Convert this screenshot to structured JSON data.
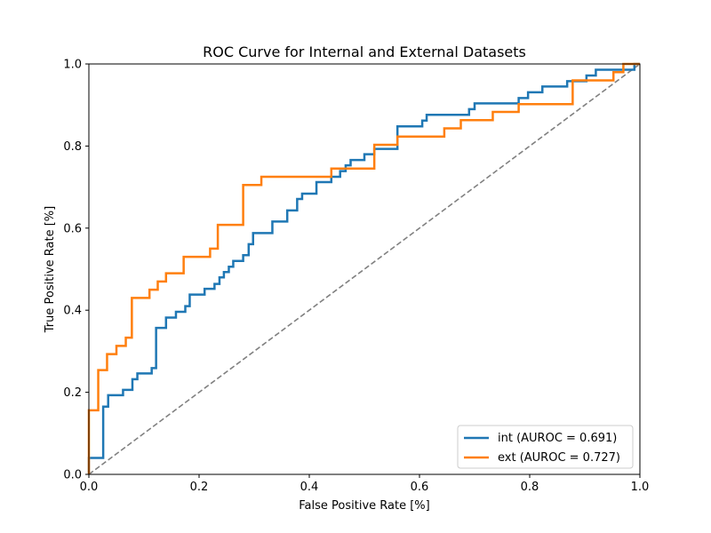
{
  "chart_data": {
    "type": "line",
    "title": "ROC Curve for Internal and External Datasets",
    "xlabel": "False Positive Rate [%]",
    "ylabel": "True Positive Rate [%]",
    "xlim": [
      0,
      1
    ],
    "ylim": [
      0,
      1
    ],
    "xticks": [
      "0.0",
      "0.2",
      "0.4",
      "0.6",
      "0.8",
      "1.0"
    ],
    "yticks": [
      "0.0",
      "0.2",
      "0.4",
      "0.6",
      "0.8",
      "1.0"
    ],
    "grid": false,
    "legend_position": "lower-right",
    "series": [
      {
        "name": "int (AUROC = 0.691)",
        "color": "#1f77b4",
        "points": [
          [
            0,
            0
          ],
          [
            0,
            0.04
          ],
          [
            0.026,
            0.04
          ],
          [
            0.026,
            0.165
          ],
          [
            0.035,
            0.165
          ],
          [
            0.035,
            0.193
          ],
          [
            0.062,
            0.193
          ],
          [
            0.062,
            0.206
          ],
          [
            0.079,
            0.206
          ],
          [
            0.079,
            0.232
          ],
          [
            0.088,
            0.232
          ],
          [
            0.088,
            0.246
          ],
          [
            0.114,
            0.246
          ],
          [
            0.114,
            0.259
          ],
          [
            0.122,
            0.259
          ],
          [
            0.122,
            0.357
          ],
          [
            0.14,
            0.357
          ],
          [
            0.14,
            0.382
          ],
          [
            0.158,
            0.382
          ],
          [
            0.158,
            0.396
          ],
          [
            0.175,
            0.396
          ],
          [
            0.175,
            0.41
          ],
          [
            0.183,
            0.41
          ],
          [
            0.183,
            0.438
          ],
          [
            0.21,
            0.438
          ],
          [
            0.21,
            0.452
          ],
          [
            0.228,
            0.452
          ],
          [
            0.228,
            0.464
          ],
          [
            0.237,
            0.464
          ],
          [
            0.237,
            0.48
          ],
          [
            0.245,
            0.48
          ],
          [
            0.245,
            0.493
          ],
          [
            0.254,
            0.493
          ],
          [
            0.254,
            0.506
          ],
          [
            0.262,
            0.506
          ],
          [
            0.262,
            0.52
          ],
          [
            0.28,
            0.52
          ],
          [
            0.28,
            0.534
          ],
          [
            0.29,
            0.534
          ],
          [
            0.29,
            0.561
          ],
          [
            0.298,
            0.561
          ],
          [
            0.298,
            0.588
          ],
          [
            0.333,
            0.588
          ],
          [
            0.333,
            0.616
          ],
          [
            0.36,
            0.616
          ],
          [
            0.36,
            0.643
          ],
          [
            0.378,
            0.643
          ],
          [
            0.378,
            0.671
          ],
          [
            0.387,
            0.671
          ],
          [
            0.387,
            0.684
          ],
          [
            0.413,
            0.684
          ],
          [
            0.413,
            0.712
          ],
          [
            0.44,
            0.712
          ],
          [
            0.44,
            0.725
          ],
          [
            0.456,
            0.725
          ],
          [
            0.456,
            0.739
          ],
          [
            0.466,
            0.739
          ],
          [
            0.466,
            0.753
          ],
          [
            0.475,
            0.753
          ],
          [
            0.475,
            0.766
          ],
          [
            0.5,
            0.766
          ],
          [
            0.5,
            0.78
          ],
          [
            0.518,
            0.78
          ],
          [
            0.518,
            0.793
          ],
          [
            0.56,
            0.793
          ],
          [
            0.56,
            0.848
          ],
          [
            0.605,
            0.848
          ],
          [
            0.605,
            0.862
          ],
          [
            0.613,
            0.862
          ],
          [
            0.613,
            0.876
          ],
          [
            0.69,
            0.876
          ],
          [
            0.69,
            0.89
          ],
          [
            0.7,
            0.89
          ],
          [
            0.7,
            0.904
          ],
          [
            0.78,
            0.904
          ],
          [
            0.78,
            0.917
          ],
          [
            0.797,
            0.917
          ],
          [
            0.797,
            0.931
          ],
          [
            0.823,
            0.931
          ],
          [
            0.823,
            0.945
          ],
          [
            0.868,
            0.945
          ],
          [
            0.868,
            0.958
          ],
          [
            0.903,
            0.958
          ],
          [
            0.903,
            0.972
          ],
          [
            0.92,
            0.972
          ],
          [
            0.92,
            0.986
          ],
          [
            0.99,
            0.986
          ],
          [
            0.99,
            1.0
          ],
          [
            1.0,
            1.0
          ]
        ]
      },
      {
        "name": "ext (AUROC = 0.727)",
        "color": "#ff7f0e",
        "points": [
          [
            0,
            0
          ],
          [
            0,
            0.156
          ],
          [
            0.017,
            0.156
          ],
          [
            0.017,
            0.254
          ],
          [
            0.033,
            0.254
          ],
          [
            0.033,
            0.293
          ],
          [
            0.05,
            0.293
          ],
          [
            0.05,
            0.313
          ],
          [
            0.067,
            0.313
          ],
          [
            0.067,
            0.333
          ],
          [
            0.078,
            0.333
          ],
          [
            0.078,
            0.43
          ],
          [
            0.11,
            0.43
          ],
          [
            0.11,
            0.45
          ],
          [
            0.125,
            0.45
          ],
          [
            0.125,
            0.47
          ],
          [
            0.14,
            0.47
          ],
          [
            0.14,
            0.49
          ],
          [
            0.172,
            0.49
          ],
          [
            0.172,
            0.53
          ],
          [
            0.22,
            0.53
          ],
          [
            0.22,
            0.55
          ],
          [
            0.234,
            0.55
          ],
          [
            0.234,
            0.608
          ],
          [
            0.28,
            0.608
          ],
          [
            0.28,
            0.705
          ],
          [
            0.313,
            0.705
          ],
          [
            0.313,
            0.725
          ],
          [
            0.44,
            0.725
          ],
          [
            0.44,
            0.745
          ],
          [
            0.518,
            0.745
          ],
          [
            0.518,
            0.803
          ],
          [
            0.56,
            0.803
          ],
          [
            0.56,
            0.823
          ],
          [
            0.645,
            0.823
          ],
          [
            0.645,
            0.843
          ],
          [
            0.675,
            0.843
          ],
          [
            0.675,
            0.863
          ],
          [
            0.733,
            0.863
          ],
          [
            0.733,
            0.883
          ],
          [
            0.78,
            0.883
          ],
          [
            0.78,
            0.902
          ],
          [
            0.878,
            0.902
          ],
          [
            0.878,
            0.96
          ],
          [
            0.952,
            0.96
          ],
          [
            0.952,
            0.98
          ],
          [
            0.97,
            0.98
          ],
          [
            0.97,
            1.0
          ],
          [
            1.0,
            1.0
          ]
        ]
      },
      {
        "name": "",
        "color": "#808080",
        "dashed": true,
        "points": [
          [
            0,
            0
          ],
          [
            1,
            1
          ]
        ]
      }
    ]
  }
}
